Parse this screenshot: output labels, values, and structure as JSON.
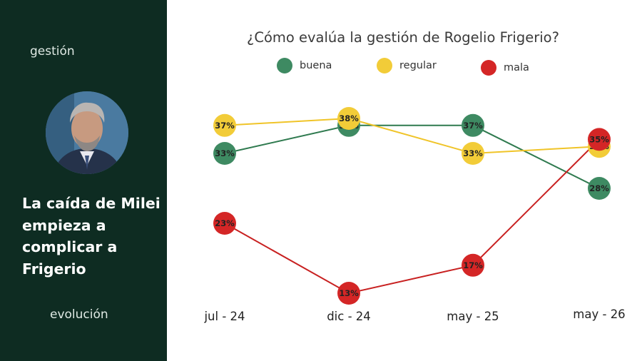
{
  "sidebar": {
    "tag_top": "gestión",
    "headline": "La caída de Milei empieza a complicar a Frigerio",
    "tag_bottom": "evolución"
  },
  "colors": {
    "sidebar_bg": "#0e2c22",
    "buena": "#3e8a62",
    "buena_line": "#2f7a4f",
    "regular": "#f2cc38",
    "regular_line": "#f0c428",
    "mala": "#d42626",
    "mala_line": "#c82020"
  },
  "chart_data": {
    "type": "line",
    "title": "¿Cómo evalúa la gestión de Rogelio Frigerio?",
    "categories": [
      "jul - 24",
      "dic - 24",
      "may - 25",
      "may - 26"
    ],
    "series": [
      {
        "name": "buena",
        "values": [
          33,
          37,
          37,
          28
        ],
        "labels": [
          "33%",
          "37%",
          "37%",
          "28%"
        ]
      },
      {
        "name": "regular",
        "values": [
          37,
          38,
          33,
          34
        ],
        "labels": [
          "37%",
          "38%",
          "33%",
          "34%"
        ]
      },
      {
        "name": "mala",
        "values": [
          23,
          13,
          17,
          35
        ],
        "labels": [
          "23%",
          "13%",
          "17%",
          "35%"
        ]
      }
    ],
    "legend": "top",
    "grid": false,
    "ylim": [
      10,
      40
    ]
  }
}
